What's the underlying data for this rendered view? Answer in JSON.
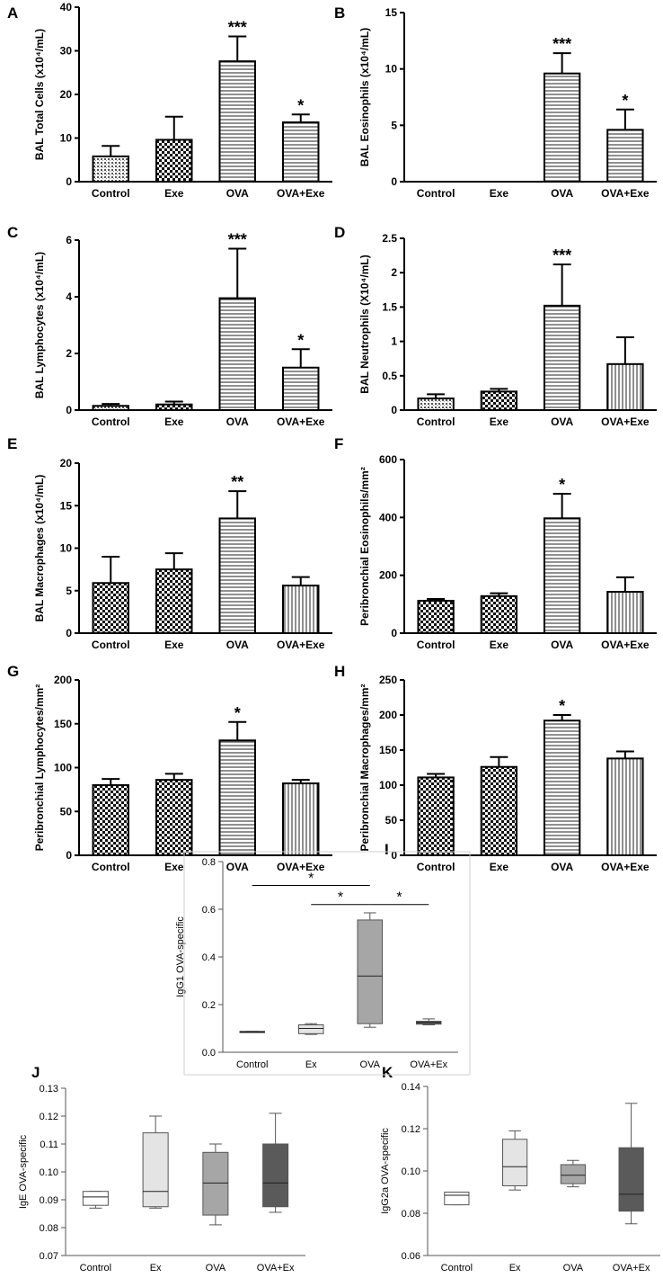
{
  "colors": {
    "ink": "#000000",
    "line": "#777777",
    "bg": "#ffffff"
  },
  "chart_data": [
    {
      "panel": "A",
      "type": "bar",
      "categories": [
        "Control",
        "Exe",
        "OVA",
        "OVA+Exe"
      ],
      "values": [
        5.8,
        9.6,
        27.6,
        13.6
      ],
      "errors": [
        2.4,
        5.3,
        5.7,
        1.8
      ],
      "stars": [
        "",
        "",
        "***",
        "*"
      ],
      "patterns": [
        "dots",
        "checker",
        "hlines",
        "hlines"
      ],
      "ylabel": "BAL Total Cells (x10⁴/mL)",
      "ylim": [
        0,
        40
      ],
      "yticks": [
        0,
        10,
        20,
        30,
        40
      ]
    },
    {
      "panel": "B",
      "type": "bar",
      "categories": [
        "Control",
        "Exe",
        "OVA",
        "OVA+Exe"
      ],
      "values": [
        0,
        0,
        9.6,
        4.6
      ],
      "errors": [
        0,
        0,
        1.8,
        1.8
      ],
      "stars": [
        "",
        "",
        "***",
        "*"
      ],
      "patterns": [
        "dots",
        "checker",
        "hlines",
        "hlines"
      ],
      "ylabel": "BAL Eosinophils (x10⁴/mL)",
      "ylim": [
        0,
        15
      ],
      "yticks": [
        0,
        5,
        10,
        15
      ]
    },
    {
      "panel": "C",
      "type": "bar",
      "categories": [
        "Control",
        "Exe",
        "OVA",
        "OVA+Exe"
      ],
      "values": [
        0.15,
        0.2,
        3.95,
        1.5
      ],
      "errors": [
        0.07,
        0.1,
        1.75,
        0.65
      ],
      "stars": [
        "",
        "",
        "***",
        "*"
      ],
      "patterns": [
        "dots",
        "checker",
        "hlines",
        "hlines"
      ],
      "ylabel": "BAL Lymphocytes (x10⁴/mL)",
      "ylim": [
        0,
        6
      ],
      "yticks": [
        0,
        2,
        4,
        6
      ]
    },
    {
      "panel": "D",
      "type": "bar",
      "categories": [
        "Control",
        "Exe",
        "OVA",
        "OVA+Exe"
      ],
      "values": [
        0.17,
        0.27,
        1.52,
        0.67
      ],
      "errors": [
        0.06,
        0.04,
        0.6,
        0.39
      ],
      "stars": [
        "",
        "",
        "***",
        ""
      ],
      "patterns": [
        "dots",
        "checker",
        "hlines",
        "vlines"
      ],
      "ylabel": "BAL Neutrophils (X10⁴/mL)",
      "ylim": [
        0,
        2.5
      ],
      "yticks": [
        0.0,
        0.5,
        1.0,
        1.5,
        2.0,
        2.5
      ]
    },
    {
      "panel": "E",
      "type": "bar",
      "categories": [
        "Control",
        "Exe",
        "OVA",
        "OVA+Exe"
      ],
      "values": [
        5.9,
        7.5,
        13.5,
        5.6
      ],
      "errors": [
        3.1,
        1.9,
        3.2,
        1.0
      ],
      "stars": [
        "",
        "",
        "**",
        ""
      ],
      "patterns": [
        "checker",
        "checker",
        "hlines",
        "vlines"
      ],
      "ylabel": "BAL Macrophages (x10⁴/mL)",
      "ylim": [
        0,
        20
      ],
      "yticks": [
        0,
        5,
        10,
        15,
        20
      ]
    },
    {
      "panel": "F",
      "type": "bar",
      "categories": [
        "Control",
        "Exe",
        "OVA",
        "OVA+Exe"
      ],
      "values": [
        112,
        128,
        397,
        143
      ],
      "errors": [
        6,
        10,
        85,
        50
      ],
      "stars": [
        "",
        "",
        "*",
        ""
      ],
      "patterns": [
        "checker",
        "checker",
        "hlines",
        "vlines"
      ],
      "ylabel": "Peribronchial Eosinophils/mm²",
      "ylim": [
        0,
        600
      ],
      "yticks": [
        0,
        200,
        400,
        600
      ]
    },
    {
      "panel": "G",
      "type": "bar",
      "categories": [
        "Control",
        "Exe",
        "OVA",
        "OVA+Exe"
      ],
      "values": [
        80,
        86,
        131,
        82
      ],
      "errors": [
        7,
        7,
        21,
        4
      ],
      "stars": [
        "",
        "",
        "*",
        ""
      ],
      "patterns": [
        "checker",
        "checker",
        "hlines",
        "vlines"
      ],
      "ylabel": "Peribronchial Lymphocytes/mm²",
      "ylim": [
        0,
        200
      ],
      "yticks": [
        0,
        50,
        100,
        150,
        200
      ]
    },
    {
      "panel": "H",
      "type": "bar",
      "categories": [
        "Control",
        "Exe",
        "OVA",
        "OVA+Exe"
      ],
      "values": [
        111,
        126,
        192,
        138
      ],
      "errors": [
        5,
        14,
        8,
        10
      ],
      "stars": [
        "",
        "",
        "*",
        ""
      ],
      "patterns": [
        "checker",
        "checker",
        "hlines",
        "vlines"
      ],
      "ylabel": "Peribronchial Macrophages/mm²",
      "ylim": [
        0,
        250
      ],
      "yticks": [
        0,
        50,
        100,
        150,
        200,
        250
      ]
    },
    {
      "panel": "I",
      "type": "box",
      "categories": [
        "Control",
        "Ex",
        "OVA",
        "OVA+Ex"
      ],
      "boxes": [
        {
          "min": 0.083,
          "q1": 0.083,
          "median": 0.085,
          "q3": 0.088,
          "max": 0.088,
          "fill": "#ffffff"
        },
        {
          "min": 0.075,
          "q1": 0.078,
          "median": 0.1,
          "q3": 0.115,
          "max": 0.12,
          "fill": "#e4e4e4"
        },
        {
          "min": 0.105,
          "q1": 0.12,
          "median": 0.32,
          "q3": 0.555,
          "max": 0.585,
          "fill": "#a6a6a6"
        },
        {
          "min": 0.115,
          "q1": 0.118,
          "median": 0.125,
          "q3": 0.13,
          "max": 0.14,
          "fill": "#5a5a5a"
        }
      ],
      "brackets": [
        {
          "from": 0,
          "to": 2,
          "y": 0.7,
          "label": "*"
        },
        {
          "from": 1,
          "to": 2,
          "y": 0.62,
          "label": "*"
        },
        {
          "from": 2,
          "to": 3,
          "y": 0.62,
          "label": "*"
        }
      ],
      "ylabel": "IgG1 OVA-specific",
      "ylim": [
        0,
        0.8
      ],
      "yticks": [
        "0.0",
        "0.2",
        "0.4",
        "0.6",
        "0.8"
      ]
    },
    {
      "panel": "J",
      "type": "box",
      "categories": [
        "Control",
        "Ex",
        "OVA",
        "OVA+Ex"
      ],
      "boxes": [
        {
          "min": 0.087,
          "q1": 0.088,
          "median": 0.091,
          "q3": 0.093,
          "max": 0.093,
          "fill": "#ffffff"
        },
        {
          "min": 0.087,
          "q1": 0.0875,
          "median": 0.093,
          "q3": 0.114,
          "max": 0.12,
          "fill": "#e4e4e4"
        },
        {
          "min": 0.081,
          "q1": 0.0845,
          "median": 0.096,
          "q3": 0.107,
          "max": 0.11,
          "fill": "#a6a6a6"
        },
        {
          "min": 0.0855,
          "q1": 0.0875,
          "median": 0.096,
          "q3": 0.11,
          "max": 0.121,
          "fill": "#5a5a5a"
        }
      ],
      "brackets": [],
      "ylabel": "IgE OVA-specific",
      "ylim": [
        0.07,
        0.13
      ],
      "yticks": [
        "0.07",
        "0.08",
        "0.09",
        "0.10",
        "0.11",
        "0.12",
        "0.13"
      ]
    },
    {
      "panel": "K",
      "type": "box",
      "categories": [
        "Control",
        "Ex",
        "OVA",
        "OVA+Ex"
      ],
      "boxes": [
        {
          "min": 0.084,
          "q1": 0.084,
          "median": 0.0885,
          "q3": 0.09,
          "max": 0.09,
          "fill": "#ffffff"
        },
        {
          "min": 0.091,
          "q1": 0.093,
          "median": 0.102,
          "q3": 0.115,
          "max": 0.119,
          "fill": "#e4e4e4"
        },
        {
          "min": 0.0925,
          "q1": 0.094,
          "median": 0.098,
          "q3": 0.103,
          "max": 0.105,
          "fill": "#a6a6a6"
        },
        {
          "min": 0.075,
          "q1": 0.081,
          "median": 0.089,
          "q3": 0.111,
          "max": 0.132,
          "fill": "#5a5a5a"
        }
      ],
      "brackets": [],
      "ylabel": "IgG2a OVA-specific",
      "ylim": [
        0.06,
        0.14
      ],
      "yticks": [
        "0.06",
        "0.08",
        "0.10",
        "0.12",
        "0.14"
      ]
    }
  ]
}
